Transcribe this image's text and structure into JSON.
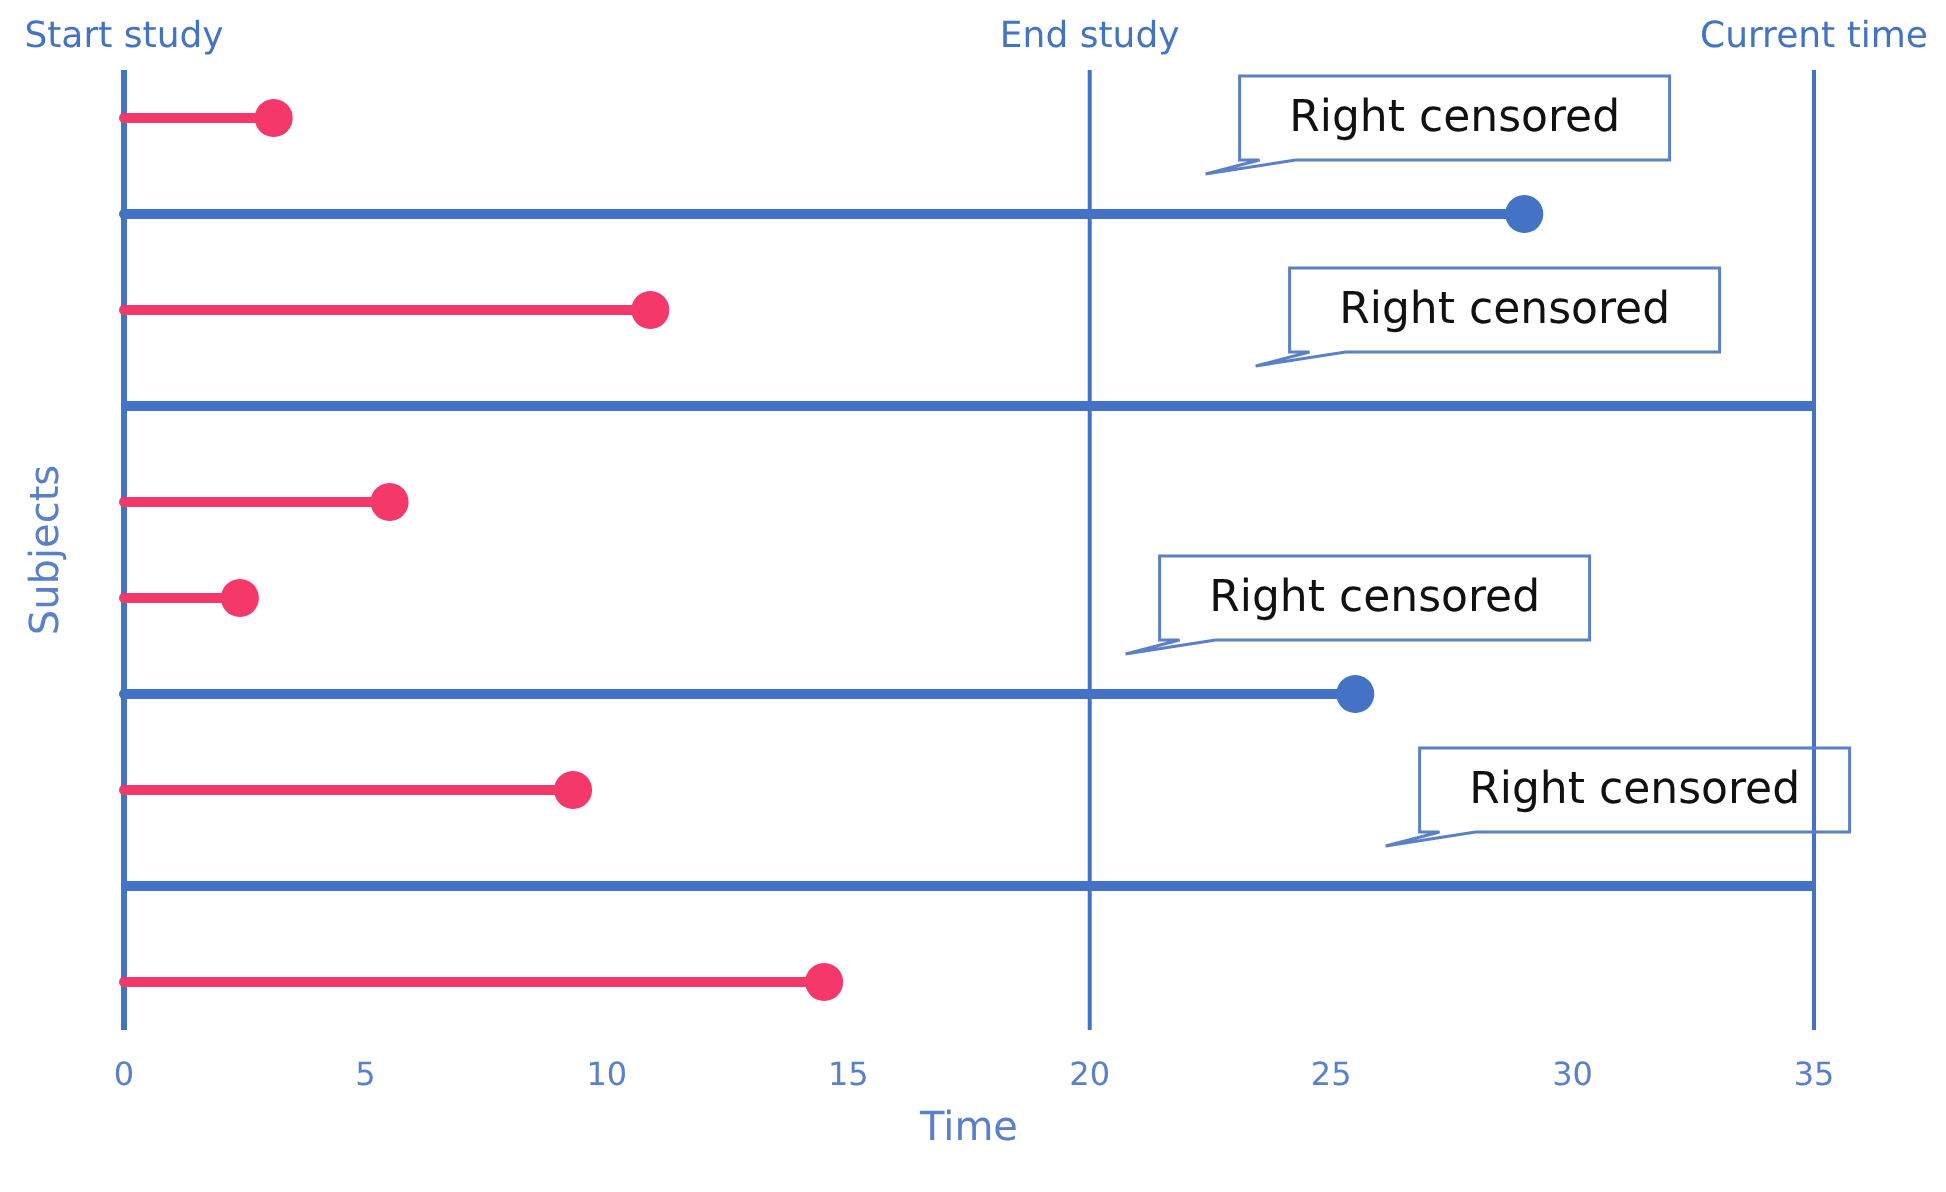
{
  "chart_data": {
    "type": "lollipop",
    "orientation": "horizontal",
    "xlabel": "Time",
    "ylabel": "Subjects",
    "categories": [
      null,
      null,
      null,
      null,
      null,
      null,
      null,
      null,
      null,
      null
    ],
    "xlim": [
      0,
      35
    ],
    "xticks": [
      0,
      5,
      10,
      15,
      20,
      25,
      30,
      35
    ],
    "tick_labels": "x",
    "marker": "circle",
    "series": [
      {
        "color": "#f5386a",
        "values": [
          3.1,
          null,
          10.9,
          null,
          5.5,
          2.4,
          null,
          9.3,
          null,
          14.5
        ]
      },
      {
        "color": "#4472c4",
        "values": [
          null,
          29.0,
          null,
          null,
          null,
          null,
          25.5,
          null,
          null,
          null
        ]
      },
      {
        "type": "bar",
        "color": "#4472c4",
        "values": [
          null,
          null,
          null,
          35,
          null,
          null,
          null,
          null,
          35,
          null
        ]
      }
    ],
    "ref_lines": [
      {
        "axis": "x",
        "value": 0,
        "label": "Start study",
        "color": "#4472c4"
      },
      {
        "axis": "x",
        "value": 20,
        "label": "End study",
        "color": "#4472c4"
      },
      {
        "axis": "x",
        "value": 35,
        "label": "Current time",
        "color": "#4472c4"
      }
    ],
    "annotations": [
      "Right censored",
      "Right censored",
      "Right censored",
      "Right censored"
    ]
  }
}
